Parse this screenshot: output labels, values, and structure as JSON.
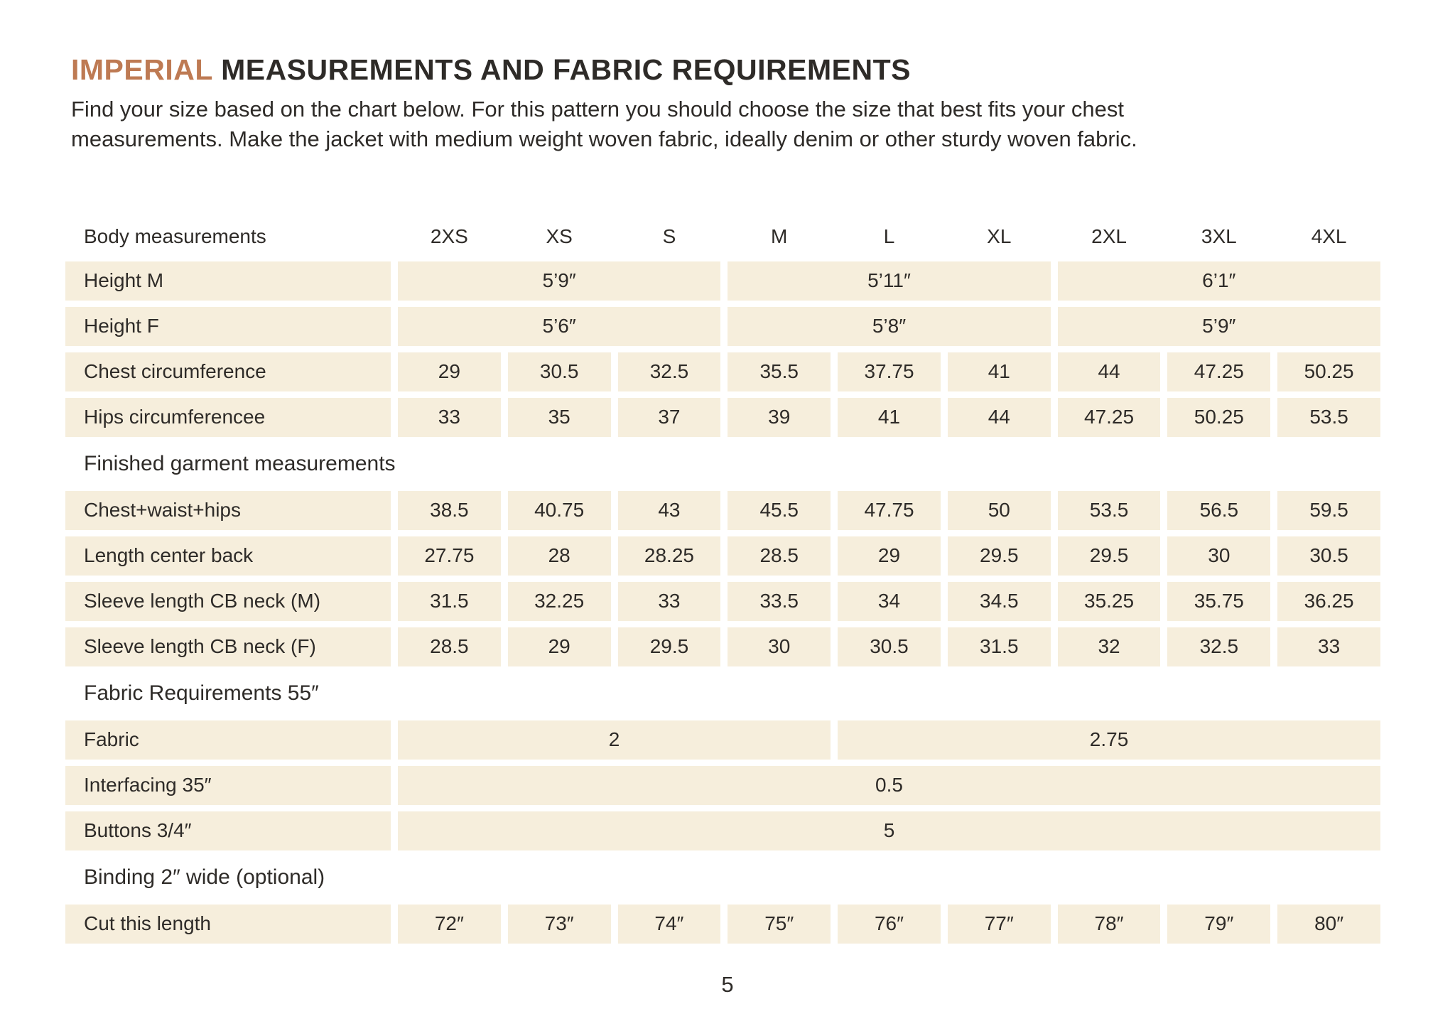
{
  "colors": {
    "accent": "#BE7A53",
    "cell_bg": "#F6EEDC",
    "text": "#2E2B28"
  },
  "page": {
    "title_highlight": "IMPERIAL",
    "title_rest": "MEASUREMENTS AND FABRIC REQUIREMENTS",
    "intro_line1": "Find your size based on the chart below. For this pattern you should choose the size that best fits your chest",
    "intro_line2": "measurements. Make the jacket with medium weight woven fabric, ideally denim or other sturdy woven fabric.",
    "page_number": "5"
  },
  "table": {
    "sizes": [
      "2XS",
      "XS",
      "S",
      "M",
      "L",
      "XL",
      "2XL",
      "3XL",
      "4XL"
    ],
    "rows": [
      {
        "kind": "columns",
        "label": "Body measurements",
        "cells": [
          {
            "t": "2XS"
          },
          {
            "t": "XS"
          },
          {
            "t": "S"
          },
          {
            "t": "M"
          },
          {
            "t": "L"
          },
          {
            "t": "XL"
          },
          {
            "t": "2XL"
          },
          {
            "t": "3XL"
          },
          {
            "t": "4XL"
          }
        ]
      },
      {
        "kind": "data",
        "label": "Height M",
        "cells": [
          {
            "t": "5’9″",
            "span": 3
          },
          {
            "t": "5’11″",
            "span": 3
          },
          {
            "t": "6’1″",
            "span": 3
          }
        ]
      },
      {
        "kind": "data",
        "label": "Height F",
        "cells": [
          {
            "t": "5’6″",
            "span": 3
          },
          {
            "t": "5’8″",
            "span": 3
          },
          {
            "t": "5’9″",
            "span": 3
          }
        ]
      },
      {
        "kind": "data",
        "label": "Chest circumference",
        "cells": [
          {
            "t": "29"
          },
          {
            "t": "30.5"
          },
          {
            "t": "32.5"
          },
          {
            "t": "35.5"
          },
          {
            "t": "37.75"
          },
          {
            "t": "41"
          },
          {
            "t": "44"
          },
          {
            "t": "47.25"
          },
          {
            "t": "50.25"
          }
        ]
      },
      {
        "kind": "data",
        "label": "Hips circumferencee",
        "cells": [
          {
            "t": "33"
          },
          {
            "t": "35"
          },
          {
            "t": "37"
          },
          {
            "t": "39"
          },
          {
            "t": "41"
          },
          {
            "t": "44"
          },
          {
            "t": "47.25"
          },
          {
            "t": "50.25"
          },
          {
            "t": "53.5"
          }
        ]
      },
      {
        "kind": "section",
        "label": "Finished garment measurements"
      },
      {
        "kind": "data",
        "label": "Chest+waist+hips",
        "cells": [
          {
            "t": "38.5"
          },
          {
            "t": "40.75"
          },
          {
            "t": "43"
          },
          {
            "t": "45.5"
          },
          {
            "t": "47.75"
          },
          {
            "t": "50"
          },
          {
            "t": "53.5"
          },
          {
            "t": "56.5"
          },
          {
            "t": "59.5"
          }
        ]
      },
      {
        "kind": "data",
        "label": "Length center back",
        "cells": [
          {
            "t": "27.75"
          },
          {
            "t": "28"
          },
          {
            "t": "28.25"
          },
          {
            "t": "28.5"
          },
          {
            "t": "29"
          },
          {
            "t": "29.5"
          },
          {
            "t": "29.5"
          },
          {
            "t": "30"
          },
          {
            "t": "30.5"
          }
        ]
      },
      {
        "kind": "data",
        "label": "Sleeve length CB neck (M)",
        "cells": [
          {
            "t": "31.5"
          },
          {
            "t": "32.25"
          },
          {
            "t": "33"
          },
          {
            "t": "33.5"
          },
          {
            "t": "34"
          },
          {
            "t": "34.5"
          },
          {
            "t": "35.25"
          },
          {
            "t": "35.75"
          },
          {
            "t": "36.25"
          }
        ]
      },
      {
        "kind": "data",
        "label": "Sleeve length CB neck (F)",
        "cells": [
          {
            "t": "28.5"
          },
          {
            "t": "29"
          },
          {
            "t": "29.5"
          },
          {
            "t": "30"
          },
          {
            "t": "30.5"
          },
          {
            "t": "31.5"
          },
          {
            "t": "32"
          },
          {
            "t": "32.5"
          },
          {
            "t": "33"
          }
        ]
      },
      {
        "kind": "section",
        "label": "Fabric Requirements 55″"
      },
      {
        "kind": "data",
        "label": "Fabric",
        "cells": [
          {
            "t": "2",
            "span": 4
          },
          {
            "t": "2.75",
            "span": 5
          }
        ]
      },
      {
        "kind": "data",
        "label": "Interfacing 35″",
        "cells": [
          {
            "t": "0.5",
            "span": 9
          }
        ]
      },
      {
        "kind": "data",
        "label": "Buttons 3/4″",
        "cells": [
          {
            "t": "5",
            "span": 9
          }
        ]
      },
      {
        "kind": "section",
        "label": "Binding 2″ wide (optional)"
      },
      {
        "kind": "data",
        "label": "Cut this length",
        "cells": [
          {
            "t": "72″"
          },
          {
            "t": "73″"
          },
          {
            "t": "74″"
          },
          {
            "t": "75″"
          },
          {
            "t": "76″"
          },
          {
            "t": "77″"
          },
          {
            "t": "78″"
          },
          {
            "t": "79″"
          },
          {
            "t": "80″"
          }
        ]
      }
    ]
  }
}
